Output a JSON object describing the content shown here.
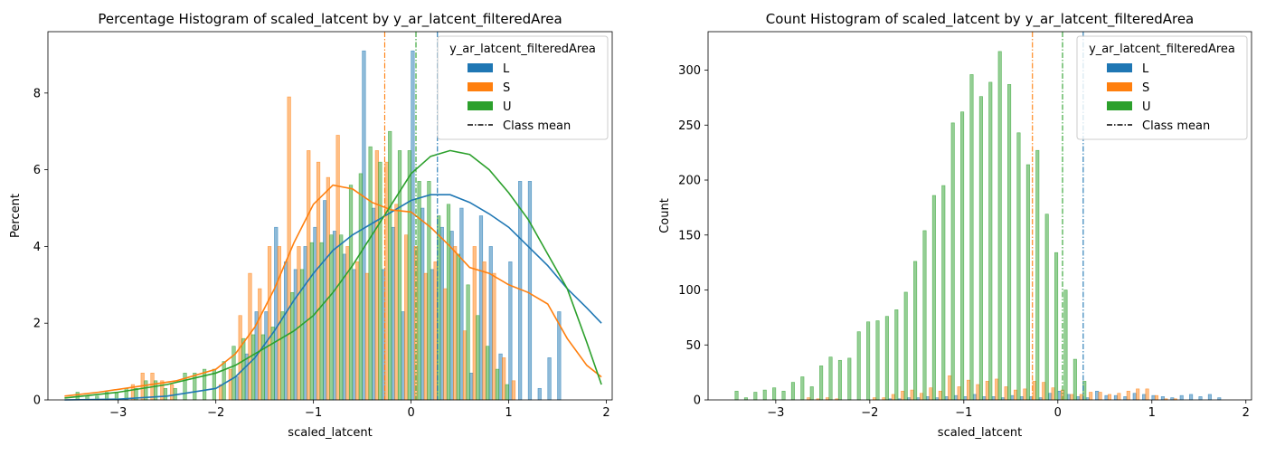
{
  "chart_data": [
    {
      "type": "bar",
      "title": "Percentage Histogram of scaled_latcent by y_ar_latcent_filteredArea",
      "xlabel": "scaled_latcent",
      "ylabel": "Percent",
      "xlim": [
        -3.72,
        2.06
      ],
      "ylim": [
        0,
        9.6
      ],
      "xticks": [
        "−3",
        "−2",
        "−1",
        "0",
        "1",
        "2"
      ],
      "xtick_values": [
        -3,
        -2,
        -1,
        0,
        1,
        2
      ],
      "yticks": [
        "0",
        "2",
        "4",
        "6",
        "8"
      ],
      "ytick_values": [
        0,
        2,
        4,
        6,
        8
      ],
      "bins": [
        -3.5,
        -3.4,
        -3.3,
        -3.2,
        -3.1,
        -3.0,
        -2.9,
        -2.8,
        -2.7,
        -2.6,
        -2.5,
        -2.4,
        -2.3,
        -2.2,
        -2.1,
        -2.0,
        -1.9,
        -1.8,
        -1.7,
        -1.6,
        -1.5,
        -1.4,
        -1.3,
        -1.2,
        -1.1,
        -1.0,
        -0.9,
        -0.8,
        -0.7,
        -0.6,
        -0.5,
        -0.4,
        -0.3,
        -0.2,
        -0.1,
        0.0,
        0.1,
        0.2,
        0.3,
        0.4,
        0.5,
        0.6,
        0.7,
        0.8,
        0.9,
        1.0,
        1.1,
        1.2,
        1.3,
        1.4,
        1.5,
        1.6,
        1.7,
        1.8,
        1.9
      ],
      "bin_width": 0.1,
      "series": [
        {
          "name": "L",
          "color": "#1f77b4",
          "values": [
            0,
            0,
            0,
            0,
            0,
            0,
            0,
            0,
            0,
            0,
            0,
            0,
            0,
            0,
            0,
            0,
            0,
            0.6,
            1.2,
            2.3,
            2.3,
            4.5,
            3.6,
            3.4,
            4.0,
            4.5,
            5.2,
            4.4,
            3.8,
            3.4,
            9.1,
            5.0,
            3.4,
            4.5,
            2.3,
            9.1,
            5.0,
            3.4,
            4.5,
            4.4,
            5.0,
            0.7,
            4.8,
            4.0,
            1.2,
            3.6,
            5.7,
            5.7,
            0.3,
            1.1,
            2.3,
            0,
            0,
            0,
            0
          ],
          "kde_x": [
            -3.55,
            -3.0,
            -2.5,
            -2.0,
            -1.8,
            -1.6,
            -1.4,
            -1.2,
            -1.0,
            -0.8,
            -0.6,
            -0.4,
            -0.2,
            0.0,
            0.2,
            0.4,
            0.6,
            0.8,
            1.0,
            1.2,
            1.4,
            1.6,
            1.8,
            1.95
          ],
          "kde_y": [
            0,
            0.02,
            0.1,
            0.3,
            0.6,
            1.1,
            1.8,
            2.6,
            3.3,
            3.9,
            4.3,
            4.6,
            4.9,
            5.2,
            5.35,
            5.35,
            5.15,
            4.85,
            4.5,
            4.0,
            3.5,
            2.9,
            2.4,
            2.0
          ],
          "mean": 0.27
        },
        {
          "name": "S",
          "color": "#ff7f0e",
          "values": [
            0,
            0,
            0,
            0,
            0,
            0,
            0.4,
            0.7,
            0.7,
            0.5,
            0.4,
            0,
            0,
            0,
            0,
            0.4,
            0.8,
            2.2,
            3.3,
            2.9,
            4.0,
            4.0,
            7.9,
            4.0,
            6.5,
            6.2,
            5.8,
            6.9,
            4.0,
            3.6,
            3.3,
            6.5,
            6.2,
            5.1,
            4.3,
            4.0,
            3.3,
            3.6,
            2.9,
            4.0,
            1.8,
            4.0,
            3.6,
            3.3,
            1.1,
            0.5,
            0,
            0,
            0,
            0,
            0,
            0,
            0,
            0,
            0
          ],
          "kde_x": [
            -3.55,
            -3.2,
            -2.8,
            -2.4,
            -2.0,
            -1.8,
            -1.6,
            -1.4,
            -1.2,
            -1.0,
            -0.8,
            -0.6,
            -0.4,
            -0.2,
            0.0,
            0.2,
            0.4,
            0.6,
            0.8,
            1.0,
            1.2,
            1.4,
            1.6,
            1.8,
            1.95
          ],
          "kde_y": [
            0.1,
            0.2,
            0.35,
            0.5,
            0.8,
            1.2,
            1.9,
            2.9,
            4.1,
            5.1,
            5.6,
            5.5,
            5.15,
            4.95,
            4.9,
            4.5,
            4.0,
            3.45,
            3.3,
            3.0,
            2.8,
            2.5,
            1.6,
            0.9,
            0.6
          ],
          "mean": -0.27
        },
        {
          "name": "U",
          "color": "#2ca02c",
          "values": [
            0.2,
            0.1,
            0.1,
            0.2,
            0.2,
            0.3,
            0.3,
            0.5,
            0.5,
            0.3,
            0.3,
            0.7,
            0.7,
            0.8,
            0.8,
            1.0,
            1.4,
            1.6,
            1.7,
            1.7,
            1.9,
            2.3,
            2.8,
            3.4,
            4.1,
            4.1,
            4.3,
            4.3,
            5.6,
            5.9,
            6.6,
            6.2,
            7.0,
            6.5,
            6.5,
            5.7,
            5.7,
            4.8,
            5.1,
            3.8,
            3.0,
            2.2,
            1.4,
            0.8,
            0.4,
            0,
            0,
            0,
            0,
            0,
            0,
            0,
            0,
            0,
            0
          ],
          "kde_x": [
            -3.55,
            -3.0,
            -2.5,
            -2.0,
            -1.8,
            -1.6,
            -1.4,
            -1.2,
            -1.0,
            -0.8,
            -0.6,
            -0.4,
            -0.2,
            0.0,
            0.2,
            0.4,
            0.6,
            0.8,
            1.0,
            1.2,
            1.4,
            1.6,
            1.8,
            1.95
          ],
          "kde_y": [
            0.05,
            0.2,
            0.4,
            0.7,
            0.9,
            1.2,
            1.5,
            1.8,
            2.2,
            2.8,
            3.5,
            4.3,
            5.1,
            5.9,
            6.35,
            6.5,
            6.4,
            6.0,
            5.4,
            4.7,
            3.8,
            2.9,
            1.5,
            0.4
          ],
          "mean": 0.05
        }
      ],
      "legend_title": "y_ar_latcent_filteredArea",
      "legend_mean_label": "Class mean",
      "legend_placement": "top-right"
    },
    {
      "type": "bar",
      "title": "Count Histogram of scaled_latcent by y_ar_latcent_filteredArea",
      "xlabel": "scaled_latcent",
      "ylabel": "Count",
      "xlim": [
        -3.72,
        2.06
      ],
      "ylim": [
        0,
        335
      ],
      "xticks": [
        "−3",
        "−2",
        "−1",
        "0",
        "1",
        "2"
      ],
      "xtick_values": [
        -3,
        -2,
        -1,
        0,
        1,
        2
      ],
      "yticks": [
        "0",
        "50",
        "100",
        "150",
        "200",
        "250",
        "300"
      ],
      "ytick_values": [
        0,
        50,
        100,
        150,
        200,
        250,
        300
      ],
      "bins": [
        -3.5,
        -3.4,
        -3.3,
        -3.2,
        -3.1,
        -3.0,
        -2.9,
        -2.8,
        -2.7,
        -2.6,
        -2.5,
        -2.4,
        -2.3,
        -2.2,
        -2.1,
        -2.0,
        -1.9,
        -1.8,
        -1.7,
        -1.6,
        -1.5,
        -1.4,
        -1.3,
        -1.2,
        -1.1,
        -1.0,
        -0.9,
        -0.8,
        -0.7,
        -0.6,
        -0.5,
        -0.4,
        -0.3,
        -0.2,
        -0.1,
        0.0,
        0.1,
        0.2,
        0.3,
        0.4,
        0.5,
        0.6,
        0.7,
        0.8,
        0.9,
        1.0,
        1.1,
        1.2,
        1.3,
        1.4,
        1.5,
        1.6,
        1.7,
        1.8,
        1.9
      ],
      "bin_width": 0.1,
      "series": [
        {
          "name": "L",
          "color": "#1f77b4",
          "values": [
            0,
            0,
            0,
            0,
            0,
            0,
            0,
            0,
            0,
            0,
            0,
            0,
            0,
            0,
            0,
            0,
            0,
            1,
            1,
            2,
            2,
            3,
            2,
            3,
            4,
            3,
            5,
            3,
            3,
            2,
            4,
            3,
            3,
            2,
            6,
            8,
            5,
            3,
            2,
            8,
            4,
            4,
            3,
            6,
            5,
            4,
            3,
            2,
            4,
            5,
            3,
            5,
            2,
            0,
            0
          ],
          "mean": 0.27
        },
        {
          "name": "S",
          "color": "#ff7f0e",
          "values": [
            0,
            0,
            0,
            0,
            0,
            0,
            0,
            0,
            2,
            1,
            2,
            1,
            0,
            0,
            0,
            2,
            2,
            5,
            8,
            9,
            6,
            11,
            8,
            22,
            12,
            18,
            14,
            17,
            19,
            12,
            9,
            10,
            17,
            16,
            11,
            9,
            5,
            5,
            7,
            7,
            5,
            6,
            8,
            10,
            10,
            4,
            1,
            1,
            0,
            0,
            0,
            0,
            0,
            0,
            0
          ],
          "mean": -0.27
        },
        {
          "name": "U",
          "color": "#2ca02c",
          "values": [
            8,
            2,
            7,
            9,
            11,
            8,
            16,
            21,
            12,
            31,
            39,
            36,
            38,
            62,
            71,
            72,
            76,
            82,
            98,
            126,
            154,
            186,
            195,
            252,
            262,
            296,
            276,
            289,
            317,
            287,
            243,
            214,
            227,
            169,
            134,
            100,
            37,
            17,
            0,
            0,
            0,
            0,
            0,
            0,
            0,
            0,
            0,
            0,
            0,
            0,
            0,
            0,
            0,
            0,
            0
          ],
          "mean": 0.05
        }
      ],
      "legend_title": "y_ar_latcent_filteredArea",
      "legend_mean_label": "Class mean",
      "legend_placement": "top-right"
    }
  ]
}
